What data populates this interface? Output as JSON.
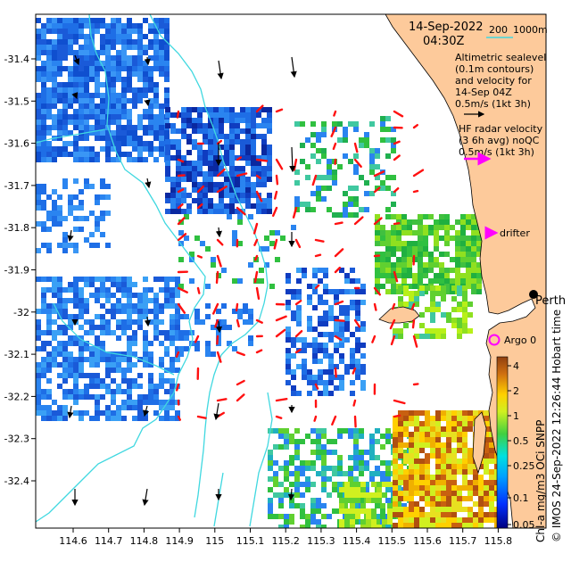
{
  "map": {
    "timestamp_date": "14-Sep-2022",
    "timestamp_time": "04:30Z",
    "depth_contour_label": "200",
    "depth_contour_label2": "1000m",
    "altimetry_lines": [
      "Altimetric sealevel",
      "(0.1m contours)",
      "and velocity for",
      "14-Sep 04Z",
      "0.5m/s (1kt 3h)"
    ],
    "hf_radar_lines": [
      "HF radar velocity",
      "(3 6h avg) noQC",
      "0.5m/s (1kt 3h)"
    ],
    "drifter_label": "drifter",
    "argo_label": "Argo 0",
    "city_label": "Perth",
    "credit": "© IMOS 24-Sep-2022 12:26:44 Hobart time",
    "colorbar_title": "Chl-a mg/m3 OCi SNPP",
    "colorbar_ticks": [
      "4",
      "2",
      "1",
      "0.5",
      "0.25",
      "0.1",
      "0.05"
    ],
    "colors": {
      "land": "#fdca9b",
      "contour": "#40d8e0",
      "hf_arrow": "#ff1010",
      "drifter": "#ff00ff",
      "argo": "#ff00ff"
    },
    "lon_ticks": [
      "114.6",
      "114.7",
      "114.8",
      "114.9",
      "115",
      "115.1",
      "115.2",
      "115.3",
      "115.4",
      "115.5",
      "115.6",
      "115.7",
      "115.8"
    ],
    "lat_ticks": [
      "-31.4",
      "-31.5",
      "-31.6",
      "-31.7",
      "-31.8",
      "-31.9",
      "-32",
      "-32.1",
      "-32.2",
      "-32.3",
      "-32.4"
    ]
  }
}
